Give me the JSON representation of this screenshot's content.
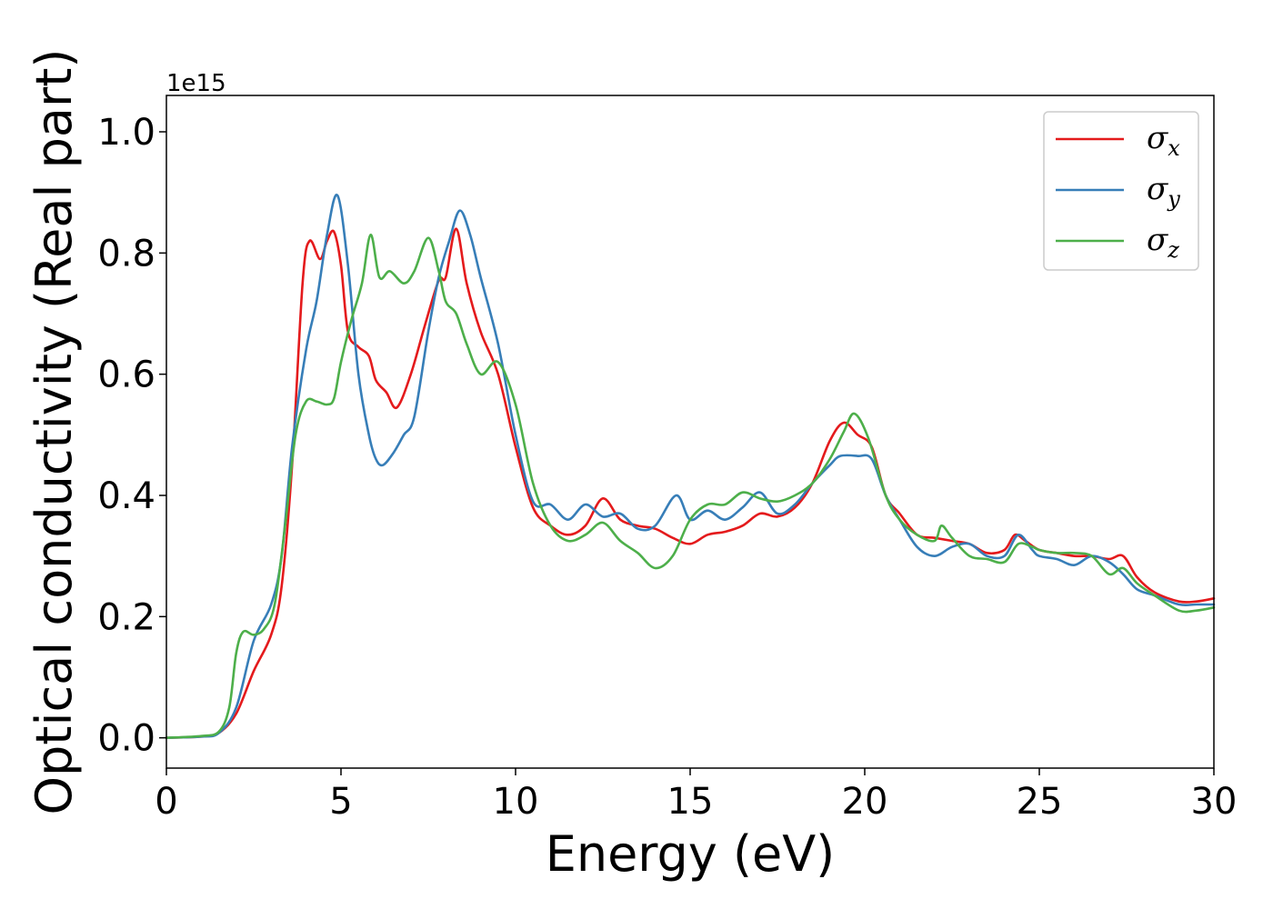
{
  "chart_data": {
    "type": "line",
    "title": "",
    "xlabel": "Energy (eV)",
    "ylabel": "Optical conductivity (Real part)",
    "y_offset_text": "1e15",
    "xlim": [
      0,
      30
    ],
    "ylim": [
      -0.05,
      1.06
    ],
    "x_ticks": [
      0,
      5,
      10,
      15,
      20,
      25,
      30
    ],
    "x_tick_labels": [
      "0",
      "5",
      "10",
      "15",
      "20",
      "25",
      "30"
    ],
    "y_ticks": [
      0.0,
      0.2,
      0.4,
      0.6,
      0.8,
      1.0
    ],
    "y_tick_labels": [
      "0.0",
      "0.2",
      "0.4",
      "0.6",
      "0.8",
      "1.0"
    ],
    "grid": false,
    "legend_position": "top-right",
    "series": [
      {
        "name": "σx",
        "legend_symbol": "σ",
        "legend_sub": "x",
        "color": "#e41a1c",
        "points": [
          [
            0,
            0
          ],
          [
            1,
            0.002
          ],
          [
            1.5,
            0.008
          ],
          [
            2,
            0.04
          ],
          [
            2.5,
            0.11
          ],
          [
            3,
            0.17
          ],
          [
            3.3,
            0.25
          ],
          [
            3.6,
            0.45
          ],
          [
            3.9,
            0.75
          ],
          [
            4.1,
            0.82
          ],
          [
            4.4,
            0.79
          ],
          [
            4.6,
            0.82
          ],
          [
            4.8,
            0.835
          ],
          [
            5.0,
            0.78
          ],
          [
            5.2,
            0.67
          ],
          [
            5.5,
            0.645
          ],
          [
            5.8,
            0.63
          ],
          [
            6.0,
            0.59
          ],
          [
            6.3,
            0.57
          ],
          [
            6.6,
            0.545
          ],
          [
            7.0,
            0.6
          ],
          [
            7.4,
            0.68
          ],
          [
            7.8,
            0.755
          ],
          [
            8.0,
            0.76
          ],
          [
            8.3,
            0.84
          ],
          [
            8.6,
            0.75
          ],
          [
            9.0,
            0.67
          ],
          [
            9.5,
            0.6
          ],
          [
            10.0,
            0.48
          ],
          [
            10.5,
            0.38
          ],
          [
            11,
            0.35
          ],
          [
            11.5,
            0.335
          ],
          [
            12,
            0.35
          ],
          [
            12.5,
            0.395
          ],
          [
            13,
            0.36
          ],
          [
            13.5,
            0.35
          ],
          [
            14,
            0.345
          ],
          [
            14.5,
            0.33
          ],
          [
            15,
            0.32
          ],
          [
            15.5,
            0.335
          ],
          [
            16,
            0.34
          ],
          [
            16.5,
            0.35
          ],
          [
            17,
            0.37
          ],
          [
            17.5,
            0.365
          ],
          [
            18,
            0.38
          ],
          [
            18.5,
            0.42
          ],
          [
            19,
            0.49
          ],
          [
            19.4,
            0.52
          ],
          [
            19.8,
            0.5
          ],
          [
            20.2,
            0.48
          ],
          [
            20.6,
            0.4
          ],
          [
            21,
            0.37
          ],
          [
            21.5,
            0.335
          ],
          [
            22,
            0.33
          ],
          [
            22.5,
            0.325
          ],
          [
            23,
            0.32
          ],
          [
            23.5,
            0.305
          ],
          [
            24,
            0.31
          ],
          [
            24.3,
            0.335
          ],
          [
            24.6,
            0.325
          ],
          [
            25,
            0.31
          ],
          [
            25.5,
            0.305
          ],
          [
            26,
            0.3
          ],
          [
            26.5,
            0.3
          ],
          [
            27,
            0.295
          ],
          [
            27.4,
            0.3
          ],
          [
            27.8,
            0.265
          ],
          [
            28.3,
            0.24
          ],
          [
            29,
            0.225
          ],
          [
            29.5,
            0.225
          ],
          [
            30,
            0.23
          ]
        ]
      },
      {
        "name": "σy",
        "legend_symbol": "σ",
        "legend_sub": "y",
        "color": "#377eb8",
        "points": [
          [
            0,
            0
          ],
          [
            1,
            0.002
          ],
          [
            1.5,
            0.008
          ],
          [
            2,
            0.05
          ],
          [
            2.5,
            0.16
          ],
          [
            3,
            0.22
          ],
          [
            3.3,
            0.3
          ],
          [
            3.6,
            0.48
          ],
          [
            4,
            0.64
          ],
          [
            4.3,
            0.72
          ],
          [
            4.6,
            0.83
          ],
          [
            4.9,
            0.895
          ],
          [
            5.2,
            0.78
          ],
          [
            5.5,
            0.6
          ],
          [
            5.8,
            0.5
          ],
          [
            6.0,
            0.46
          ],
          [
            6.2,
            0.45
          ],
          [
            6.5,
            0.47
          ],
          [
            6.8,
            0.5
          ],
          [
            7.1,
            0.53
          ],
          [
            7.5,
            0.67
          ],
          [
            7.8,
            0.76
          ],
          [
            8.1,
            0.82
          ],
          [
            8.4,
            0.87
          ],
          [
            8.7,
            0.83
          ],
          [
            9.0,
            0.76
          ],
          [
            9.5,
            0.65
          ],
          [
            10,
            0.5
          ],
          [
            10.5,
            0.39
          ],
          [
            11,
            0.385
          ],
          [
            11.5,
            0.36
          ],
          [
            12,
            0.385
          ],
          [
            12.5,
            0.365
          ],
          [
            13,
            0.37
          ],
          [
            13.5,
            0.345
          ],
          [
            14,
            0.35
          ],
          [
            14.6,
            0.4
          ],
          [
            15,
            0.36
          ],
          [
            15.5,
            0.375
          ],
          [
            16,
            0.36
          ],
          [
            16.5,
            0.38
          ],
          [
            17,
            0.405
          ],
          [
            17.5,
            0.37
          ],
          [
            18,
            0.385
          ],
          [
            18.5,
            0.42
          ],
          [
            19,
            0.45
          ],
          [
            19.3,
            0.465
          ],
          [
            19.8,
            0.465
          ],
          [
            20.2,
            0.46
          ],
          [
            20.6,
            0.4
          ],
          [
            21,
            0.36
          ],
          [
            21.5,
            0.315
          ],
          [
            22,
            0.3
          ],
          [
            22.5,
            0.315
          ],
          [
            23,
            0.32
          ],
          [
            23.5,
            0.3
          ],
          [
            24,
            0.3
          ],
          [
            24.4,
            0.335
          ],
          [
            24.8,
            0.31
          ],
          [
            25,
            0.3
          ],
          [
            25.5,
            0.295
          ],
          [
            26,
            0.285
          ],
          [
            26.5,
            0.3
          ],
          [
            27,
            0.29
          ],
          [
            27.4,
            0.27
          ],
          [
            27.8,
            0.245
          ],
          [
            28.3,
            0.235
          ],
          [
            29,
            0.22
          ],
          [
            29.5,
            0.22
          ],
          [
            30,
            0.22
          ]
        ]
      },
      {
        "name": "σz",
        "legend_symbol": "σ",
        "legend_sub": "z",
        "color": "#4daf4a",
        "points": [
          [
            0,
            0
          ],
          [
            1,
            0.003
          ],
          [
            1.5,
            0.01
          ],
          [
            1.8,
            0.05
          ],
          [
            2.0,
            0.14
          ],
          [
            2.2,
            0.175
          ],
          [
            2.5,
            0.17
          ],
          [
            2.8,
            0.18
          ],
          [
            3.1,
            0.22
          ],
          [
            3.4,
            0.35
          ],
          [
            3.7,
            0.5
          ],
          [
            4,
            0.555
          ],
          [
            4.3,
            0.555
          ],
          [
            4.6,
            0.55
          ],
          [
            4.8,
            0.56
          ],
          [
            5,
            0.62
          ],
          [
            5.3,
            0.69
          ],
          [
            5.6,
            0.75
          ],
          [
            5.85,
            0.83
          ],
          [
            6.1,
            0.76
          ],
          [
            6.4,
            0.77
          ],
          [
            6.8,
            0.75
          ],
          [
            7.1,
            0.77
          ],
          [
            7.5,
            0.825
          ],
          [
            7.8,
            0.77
          ],
          [
            8.0,
            0.72
          ],
          [
            8.3,
            0.7
          ],
          [
            8.6,
            0.65
          ],
          [
            9,
            0.6
          ],
          [
            9.5,
            0.62
          ],
          [
            10,
            0.55
          ],
          [
            10.5,
            0.42
          ],
          [
            11,
            0.35
          ],
          [
            11.5,
            0.325
          ],
          [
            12,
            0.335
          ],
          [
            12.5,
            0.355
          ],
          [
            13,
            0.325
          ],
          [
            13.5,
            0.305
          ],
          [
            14,
            0.28
          ],
          [
            14.5,
            0.3
          ],
          [
            15,
            0.36
          ],
          [
            15.5,
            0.385
          ],
          [
            16,
            0.385
          ],
          [
            16.5,
            0.405
          ],
          [
            17,
            0.395
          ],
          [
            17.5,
            0.39
          ],
          [
            18,
            0.4
          ],
          [
            18.5,
            0.42
          ],
          [
            19,
            0.46
          ],
          [
            19.4,
            0.505
          ],
          [
            19.7,
            0.535
          ],
          [
            20.1,
            0.495
          ],
          [
            20.6,
            0.4
          ],
          [
            21,
            0.36
          ],
          [
            21.5,
            0.335
          ],
          [
            22,
            0.325
          ],
          [
            22.2,
            0.35
          ],
          [
            22.5,
            0.33
          ],
          [
            23,
            0.3
          ],
          [
            23.5,
            0.295
          ],
          [
            24,
            0.29
          ],
          [
            24.4,
            0.32
          ],
          [
            24.8,
            0.315
          ],
          [
            25,
            0.31
          ],
          [
            25.5,
            0.305
          ],
          [
            26,
            0.305
          ],
          [
            26.5,
            0.3
          ],
          [
            27,
            0.27
          ],
          [
            27.4,
            0.28
          ],
          [
            27.8,
            0.255
          ],
          [
            28.3,
            0.235
          ],
          [
            29,
            0.21
          ],
          [
            29.5,
            0.21
          ],
          [
            30,
            0.215
          ]
        ]
      }
    ]
  }
}
